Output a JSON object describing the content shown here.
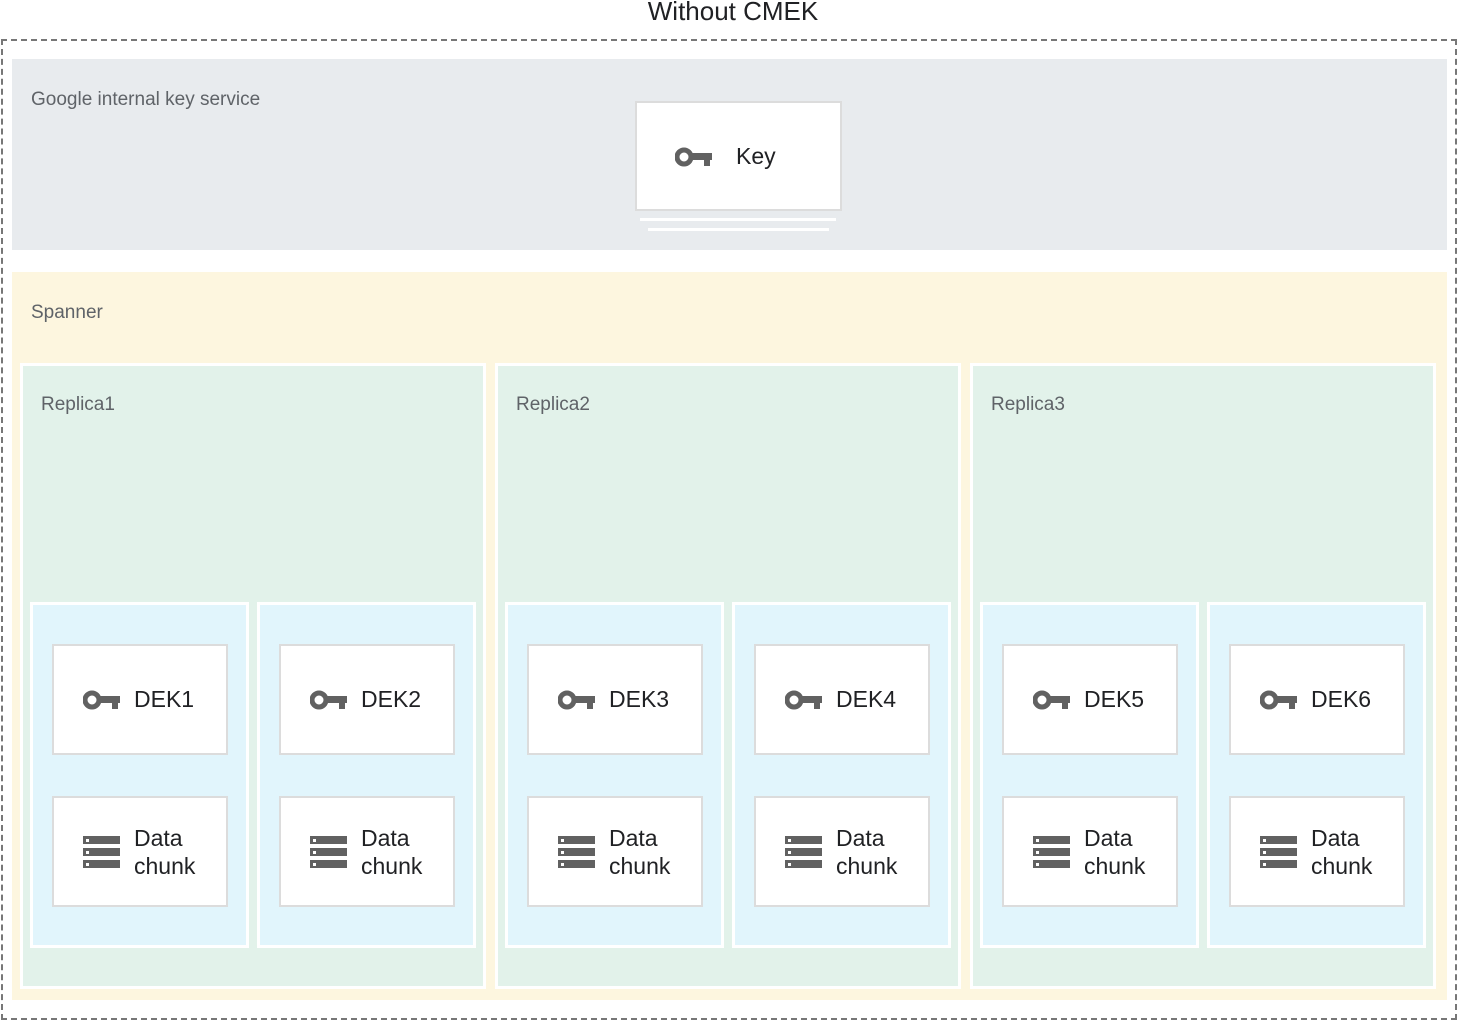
{
  "title": "Without CMEK",
  "key_service": {
    "label": "Google internal key service",
    "key_label": "Key",
    "icon": "key-icon",
    "background": "#e8ebee"
  },
  "spanner": {
    "label": "Spanner",
    "background": "#fdf6df",
    "replicas": [
      {
        "label": "Replica1",
        "chunks": [
          {
            "dek": "DEK1",
            "data": "Data chunk"
          },
          {
            "dek": "DEK2",
            "data": "Data chunk"
          }
        ]
      },
      {
        "label": "Replica2",
        "chunks": [
          {
            "dek": "DEK3",
            "data": "Data chunk"
          },
          {
            "dek": "DEK4",
            "data": "Data chunk"
          }
        ]
      },
      {
        "label": "Replica3",
        "chunks": [
          {
            "dek": "DEK5",
            "data": "Data chunk"
          },
          {
            "dek": "DEK6",
            "data": "Data chunk"
          }
        ]
      }
    ]
  },
  "colors": {
    "replica": "#e2f2ea",
    "chunk_group": "#e1f5fc",
    "icon": "#616161"
  }
}
